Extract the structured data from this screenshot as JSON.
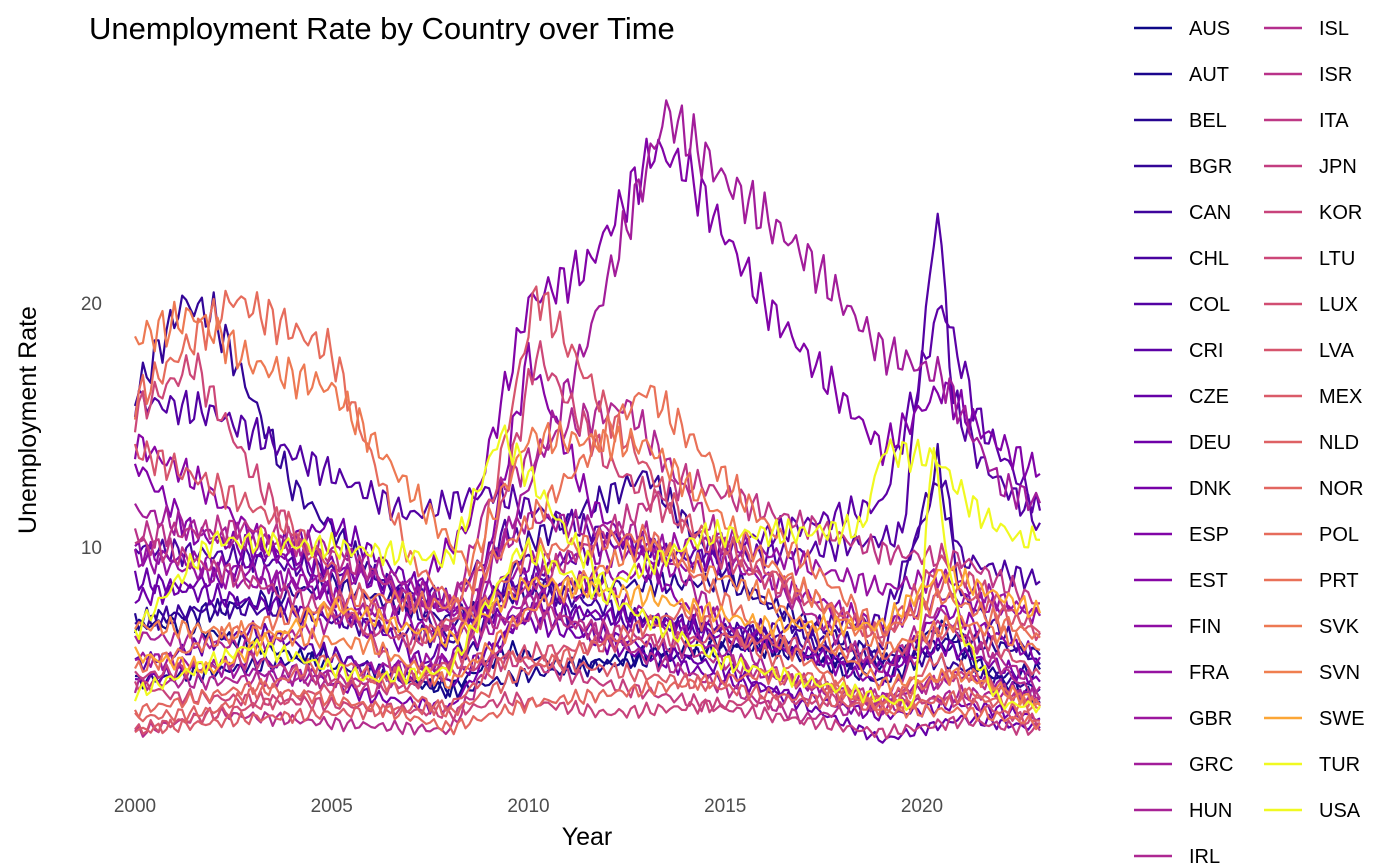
{
  "chart_data": {
    "type": "line",
    "title": "Unemployment Rate by Country over Time",
    "xlabel": "Year",
    "ylabel": "Unemployment Rate",
    "x_ticks": [
      2000,
      2005,
      2010,
      2015,
      2020
    ],
    "y_ticks": [
      10,
      20
    ],
    "xlim": [
      2000,
      2023
    ],
    "ylim": [
      1.5,
      28.5
    ],
    "grid": false,
    "legend_position": "right",
    "series": [
      {
        "name": "AUS",
        "color": "#0d0887",
        "x": [
          2000,
          2001,
          2003,
          2006,
          2008,
          2009.5,
          2011,
          2015,
          2019,
          2020.5,
          2021.5,
          2023
        ],
        "values": [
          6.8,
          6.9,
          6.0,
          4.8,
          4.2,
          5.8,
          5.1,
          6.1,
          5.2,
          6.8,
          5.0,
          3.7
        ]
      },
      {
        "name": "AUT",
        "color": "#1b068d",
        "x": [
          2000,
          2002,
          2005,
          2008,
          2010,
          2014,
          2016,
          2019,
          2020.5,
          2022,
          2023
        ],
        "values": [
          4.5,
          4.9,
          5.6,
          4.1,
          4.8,
          5.6,
          6.0,
          4.5,
          6.0,
          4.7,
          5.0
        ]
      },
      {
        "name": "BEL",
        "color": "#260591",
        "x": [
          2000,
          2002,
          2005,
          2008,
          2010,
          2015,
          2019,
          2021,
          2023
        ],
        "values": [
          7.0,
          7.4,
          8.5,
          7.0,
          8.3,
          8.6,
          5.4,
          6.3,
          5.6
        ]
      },
      {
        "name": "BGR",
        "color": "#330597",
        "x": [
          2000,
          2001.2,
          2002,
          2004,
          2006,
          2008.5,
          2010,
          2013,
          2015,
          2018,
          2020,
          2023
        ],
        "values": [
          16.2,
          20.0,
          19.5,
          12.5,
          9.0,
          5.6,
          10.2,
          13.0,
          9.0,
          5.3,
          5.5,
          4.2
        ]
      },
      {
        "name": "CAN",
        "color": "#3e049c",
        "x": [
          2000,
          2002,
          2004,
          2008,
          2009.5,
          2013,
          2019,
          2020.4,
          2021,
          2023
        ],
        "values": [
          6.8,
          7.6,
          7.3,
          6.2,
          8.6,
          7.1,
          5.7,
          13.5,
          8.0,
          5.2
        ]
      },
      {
        "name": "CHL",
        "color": "#4903a0",
        "x": [
          2000,
          2003,
          2006,
          2008,
          2009.5,
          2011,
          2015,
          2019,
          2020.5,
          2021,
          2023
        ],
        "values": [
          10.0,
          9.5,
          8.8,
          7.8,
          10.8,
          7.3,
          6.5,
          7.0,
          13.0,
          9.5,
          8.6
        ]
      },
      {
        "name": "COL",
        "color": "#5302a3",
        "x": [
          2000,
          2002,
          2005,
          2007,
          2009,
          2011,
          2014,
          2017,
          2019.5,
          2020.4,
          2020.8,
          2021.5,
          2023
        ],
        "values": [
          16.0,
          15.5,
          13.0,
          11.3,
          12.3,
          11.0,
          9.5,
          9.8,
          10.5,
          24.0,
          16.0,
          13.5,
          11.0
        ]
      },
      {
        "name": "CRI",
        "color": "#5c01a6",
        "x": [
          2000,
          2003,
          2007,
          2009,
          2010.5,
          2012,
          2014,
          2019,
          2020.5,
          2021.5,
          2023
        ],
        "values": [
          5.2,
          6.6,
          4.6,
          8.0,
          9.2,
          10.2,
          9.6,
          11.8,
          20.0,
          15.0,
          11.5
        ]
      },
      {
        "name": "CZE",
        "color": "#6600a7",
        "x": [
          2000,
          2003,
          2006,
          2008,
          2010,
          2015,
          2019,
          2021,
          2023
        ],
        "values": [
          8.7,
          7.7,
          7.0,
          4.4,
          7.3,
          5.0,
          2.1,
          3.0,
          2.6
        ]
      },
      {
        "name": "DEU",
        "color": "#6f00a8",
        "x": [
          2000,
          2002,
          2005,
          2008,
          2010,
          2015,
          2019,
          2021,
          2023
        ],
        "values": [
          7.9,
          8.7,
          11.0,
          7.4,
          7.0,
          4.6,
          3.1,
          3.6,
          3.0
        ]
      },
      {
        "name": "DNK",
        "color": "#7701a8",
        "x": [
          2000,
          2003,
          2006,
          2008,
          2010,
          2013,
          2019,
          2020.5,
          2023
        ],
        "values": [
          4.5,
          5.5,
          3.9,
          3.4,
          7.6,
          7.0,
          5.0,
          6.0,
          4.5
        ]
      },
      {
        "name": "ESP",
        "color": "#8104a7",
        "x": [
          2000,
          2001.5,
          2005,
          2007,
          2008.5,
          2010,
          2011.5,
          2013.2,
          2014,
          2016,
          2019,
          2020.5,
          2021.5,
          2023
        ],
        "values": [
          13.5,
          10.5,
          9.3,
          8.0,
          11.0,
          20.0,
          21.5,
          26.3,
          25.5,
          20.0,
          14.0,
          16.5,
          14.8,
          13.0
        ]
      },
      {
        "name": "EST",
        "color": "#8707a6",
        "x": [
          2000,
          2001.5,
          2003,
          2005,
          2007,
          2008.5,
          2010,
          2011.5,
          2014,
          2019,
          2020.5,
          2023
        ],
        "values": [
          14.3,
          12.8,
          10.5,
          8.0,
          4.5,
          6.0,
          17.8,
          12.0,
          7.5,
          4.4,
          7.5,
          5.5
        ]
      },
      {
        "name": "FIN",
        "color": "#8f0da4",
        "x": [
          2000,
          2003,
          2008,
          2010,
          2015,
          2019,
          2020.5,
          2023
        ],
        "values": [
          9.8,
          9.0,
          6.4,
          8.4,
          9.4,
          6.7,
          8.0,
          7.2
        ]
      },
      {
        "name": "FRA",
        "color": "#9613a1",
        "x": [
          2000,
          2003,
          2006,
          2008,
          2010,
          2015,
          2019,
          2020.5,
          2023
        ],
        "values": [
          9.6,
          8.5,
          8.9,
          7.3,
          9.3,
          10.3,
          8.3,
          8.8,
          7.2
        ]
      },
      {
        "name": "GBR",
        "color": "#9c179e",
        "x": [
          2000,
          2004,
          2008,
          2010,
          2012,
          2016,
          2019,
          2021,
          2023
        ],
        "values": [
          5.5,
          4.7,
          5.4,
          7.9,
          8.1,
          4.8,
          3.8,
          4.8,
          3.8
        ]
      },
      {
        "name": "GRC",
        "color": "#a21d9a",
        "x": [
          2000,
          2002,
          2005,
          2008.5,
          2010,
          2011.5,
          2013.5,
          2015,
          2017,
          2019,
          2020.5,
          2022,
          2023
        ],
        "values": [
          11.5,
          10.5,
          10.0,
          7.3,
          12.5,
          18.5,
          27.8,
          25.0,
          22.0,
          18.0,
          17.0,
          12.5,
          11.8
        ]
      },
      {
        "name": "HUN",
        "color": "#a82296",
        "x": [
          2000,
          2003,
          2006,
          2008,
          2010,
          2013,
          2016,
          2019,
          2021,
          2023
        ],
        "values": [
          6.4,
          5.9,
          7.5,
          7.8,
          11.2,
          10.5,
          5.0,
          3.4,
          4.0,
          3.9
        ]
      },
      {
        "name": "IRL",
        "color": "#ae2892",
        "x": [
          2000,
          2003,
          2006,
          2007.5,
          2009,
          2011,
          2012.5,
          2015,
          2019,
          2020.4,
          2021,
          2023
        ],
        "values": [
          4.4,
          4.6,
          4.5,
          4.8,
          12.0,
          15.0,
          15.8,
          10.0,
          4.9,
          7.5,
          6.5,
          4.3
        ]
      },
      {
        "name": "ISL",
        "color": "#b42e8d",
        "x": [
          2000,
          2002,
          2005,
          2008,
          2010,
          2013,
          2017,
          2019,
          2020.5,
          2023
        ],
        "values": [
          2.4,
          3.2,
          2.8,
          2.5,
          7.8,
          5.5,
          3.0,
          3.6,
          7.0,
          3.8
        ]
      },
      {
        "name": "ISR",
        "color": "#b93289",
        "x": [
          2000,
          2003,
          2006,
          2008,
          2010,
          2013,
          2016,
          2019,
          2021,
          2023
        ],
        "values": [
          10.5,
          10.8,
          9.0,
          6.5,
          7.2,
          6.3,
          4.8,
          3.8,
          4.8,
          3.6
        ]
      },
      {
        "name": "ITA",
        "color": "#be3885",
        "x": [
          2000,
          2004,
          2007,
          2010,
          2014,
          2016,
          2019,
          2021,
          2023
        ],
        "values": [
          10.3,
          8.0,
          6.1,
          8.4,
          12.8,
          11.5,
          9.8,
          9.5,
          7.7
        ]
      },
      {
        "name": "JPN",
        "color": "#c33d80",
        "x": [
          2000,
          2003,
          2006,
          2009.5,
          2012,
          2015,
          2019,
          2021,
          2023
        ],
        "values": [
          4.7,
          5.4,
          4.1,
          5.4,
          4.4,
          3.4,
          2.4,
          2.9,
          2.5
        ]
      },
      {
        "name": "KOR",
        "color": "#c8437b",
        "x": [
          2000,
          2001,
          2004,
          2008,
          2009.5,
          2012,
          2016,
          2019,
          2021,
          2023
        ],
        "values": [
          4.5,
          3.9,
          3.7,
          3.2,
          3.8,
          3.2,
          3.7,
          3.8,
          3.7,
          2.8
        ]
      },
      {
        "name": "LTU",
        "color": "#cc4778",
        "x": [
          2000,
          2001.5,
          2003,
          2005,
          2007,
          2008.5,
          2010.2,
          2012,
          2015,
          2019,
          2020.5,
          2023
        ],
        "values": [
          15.5,
          17.5,
          13.0,
          8.3,
          4.2,
          5.8,
          18.0,
          13.5,
          9.5,
          6.3,
          9.5,
          6.5
        ]
      },
      {
        "name": "LUX",
        "color": "#d14e72",
        "x": [
          2000,
          2003,
          2006,
          2009,
          2013,
          2016,
          2019,
          2021,
          2023
        ],
        "values": [
          2.5,
          3.5,
          4.6,
          5.5,
          6.2,
          6.2,
          5.5,
          6.8,
          4.8
        ]
      },
      {
        "name": "LVA",
        "color": "#d6556d",
        "x": [
          2000,
          2002,
          2004,
          2007,
          2008.5,
          2010.2,
          2012,
          2014,
          2019,
          2020.5,
          2023
        ],
        "values": [
          14.0,
          12.5,
          10.8,
          6.0,
          7.5,
          20.5,
          15.5,
          11.0,
          6.3,
          8.5,
          6.5
        ]
      },
      {
        "name": "MEX",
        "color": "#da5b69",
        "x": [
          2000,
          2003,
          2008,
          2009.5,
          2012,
          2016,
          2019,
          2020.4,
          2021,
          2023
        ],
        "values": [
          2.5,
          3.0,
          3.5,
          5.5,
          5.0,
          4.0,
          3.4,
          5.5,
          4.2,
          2.9
        ]
      },
      {
        "name": "NLD",
        "color": "#de6164",
        "x": [
          2000,
          2002,
          2005,
          2008,
          2010,
          2014,
          2017,
          2019,
          2021,
          2023
        ],
        "values": [
          3.0,
          3.3,
          5.5,
          3.2,
          5.0,
          7.4,
          4.8,
          3.4,
          3.9,
          3.5
        ]
      },
      {
        "name": "NOR",
        "color": "#e26660",
        "x": [
          2000,
          2003,
          2006,
          2008,
          2010,
          2016,
          2019,
          2021,
          2023
        ],
        "values": [
          3.3,
          4.3,
          3.5,
          2.6,
          3.6,
          4.8,
          3.7,
          5.0,
          3.4
        ]
      },
      {
        "name": "POL",
        "color": "#e66c5c",
        "x": [
          2000,
          2002.5,
          2005,
          2007,
          2008.5,
          2010,
          2013,
          2016,
          2019,
          2021,
          2023
        ],
        "values": [
          16.0,
          20.2,
          18.0,
          9.5,
          7.0,
          9.8,
          10.5,
          6.5,
          3.3,
          3.3,
          2.8
        ]
      },
      {
        "name": "PRT",
        "color": "#e97158",
        "x": [
          2000,
          2003,
          2006,
          2008,
          2010,
          2013,
          2016,
          2019,
          2020.5,
          2023
        ],
        "values": [
          5.0,
          6.8,
          8.0,
          7.6,
          11.0,
          16.5,
          11.0,
          6.5,
          8.0,
          6.3
        ]
      },
      {
        "name": "SVK",
        "color": "#ed7953",
        "x": [
          2000,
          2001.5,
          2003,
          2005,
          2008.5,
          2010,
          2013,
          2016,
          2019,
          2021,
          2023
        ],
        "values": [
          18.5,
          19.5,
          17.5,
          16.5,
          9.2,
          14.5,
          14.2,
          9.5,
          5.8,
          7.0,
          5.8
        ]
      },
      {
        "name": "SVN",
        "color": "#f07f4f",
        "x": [
          2000,
          2003,
          2006,
          2008,
          2010,
          2013,
          2016,
          2019,
          2021,
          2023
        ],
        "values": [
          6.8,
          6.5,
          6.0,
          4.4,
          7.4,
          10.2,
          8.0,
          4.4,
          4.8,
          3.6
        ]
      },
      {
        "name": "SWE",
        "color": "#fca636",
        "x": [
          2000,
          2002,
          2005,
          2008,
          2010,
          2013,
          2016,
          2019,
          2020.5,
          2023
        ],
        "values": [
          5.6,
          5.0,
          7.6,
          6.2,
          8.6,
          8.0,
          6.8,
          6.8,
          9.0,
          7.3
        ]
      },
      {
        "name": "TUR",
        "color": "#f0f921",
        "x": [
          2000,
          2001,
          2002,
          2005,
          2008,
          2009.3,
          2011,
          2012,
          2014.5,
          2017,
          2018.5,
          2019,
          2020.4,
          2021,
          2021.6,
          2022.5,
          2023
        ],
        "values": [
          6.5,
          8.5,
          10.3,
          10.0,
          9.5,
          14.7,
          10.5,
          8.4,
          10.5,
          10.6,
          10.8,
          14.0,
          13.6,
          12.2,
          11.2,
          10.3,
          10.3
        ]
      },
      {
        "name": "USA",
        "color": "#f0f921",
        "x": [
          2000,
          2003,
          2006,
          2008,
          2009.8,
          2012,
          2015,
          2019.8,
          2020.3,
          2020.5,
          2021,
          2022,
          2023
        ],
        "values": [
          4.0,
          6.0,
          4.6,
          5.0,
          10.0,
          8.0,
          5.3,
          3.5,
          14.7,
          11.0,
          6.5,
          3.6,
          3.5
        ]
      }
    ]
  }
}
